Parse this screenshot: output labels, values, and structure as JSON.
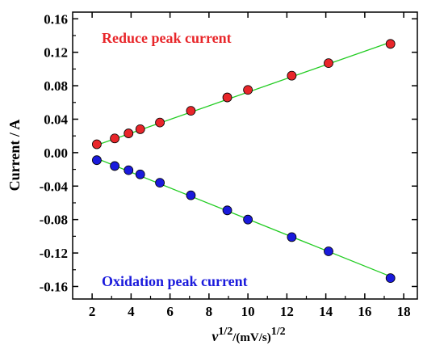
{
  "chart_data": {
    "type": "scatter",
    "xlabel_base": "v",
    "xlabel_exp": "1/2",
    "xlabel_unit": "/(mV/s)",
    "xlabel_unit_exp": "1/2",
    "ylabel": "Current / A",
    "xlim": [
      1,
      18.7
    ],
    "ylim": [
      -0.175,
      0.168
    ],
    "xticks": [
      2,
      4,
      6,
      8,
      10,
      12,
      14,
      16,
      18
    ],
    "xtick_labels": [
      "2",
      "4",
      "6",
      "8",
      "10",
      "12",
      "14",
      "16",
      "18"
    ],
    "yticks": [
      -0.16,
      -0.12,
      -0.08,
      -0.04,
      0.0,
      0.04,
      0.08,
      0.12,
      0.16
    ],
    "ytick_labels": [
      "-0.16",
      "-0.12",
      "-0.08",
      "-0.04",
      "0.00",
      "0.04",
      "0.08",
      "0.12",
      "0.16"
    ],
    "grid": false,
    "series": [
      {
        "name": "Reduce peak current",
        "color": "#e8262a",
        "fit_color": "#22cc22",
        "x": [
          2.24,
          3.16,
          3.87,
          4.47,
          5.48,
          7.07,
          8.94,
          10.0,
          12.25,
          14.14,
          17.32
        ],
        "y": [
          0.01,
          0.017,
          0.023,
          0.028,
          0.036,
          0.05,
          0.066,
          0.075,
          0.092,
          0.107,
          0.13
        ],
        "fit": [
          [
            2.24,
            0.009
          ],
          [
            17.32,
            0.132
          ]
        ]
      },
      {
        "name": "Oxidation peak current",
        "color": "#1a1adc",
        "fit_color": "#22cc22",
        "x": [
          2.24,
          3.16,
          3.87,
          4.47,
          5.48,
          7.07,
          8.94,
          10.0,
          12.25,
          14.14,
          17.32
        ],
        "y": [
          -0.009,
          -0.016,
          -0.021,
          -0.026,
          -0.036,
          -0.051,
          -0.069,
          -0.08,
          -0.101,
          -0.118,
          -0.15
        ],
        "fit": [
          [
            2.24,
            -0.007
          ],
          [
            17.32,
            -0.148
          ]
        ]
      }
    ]
  }
}
